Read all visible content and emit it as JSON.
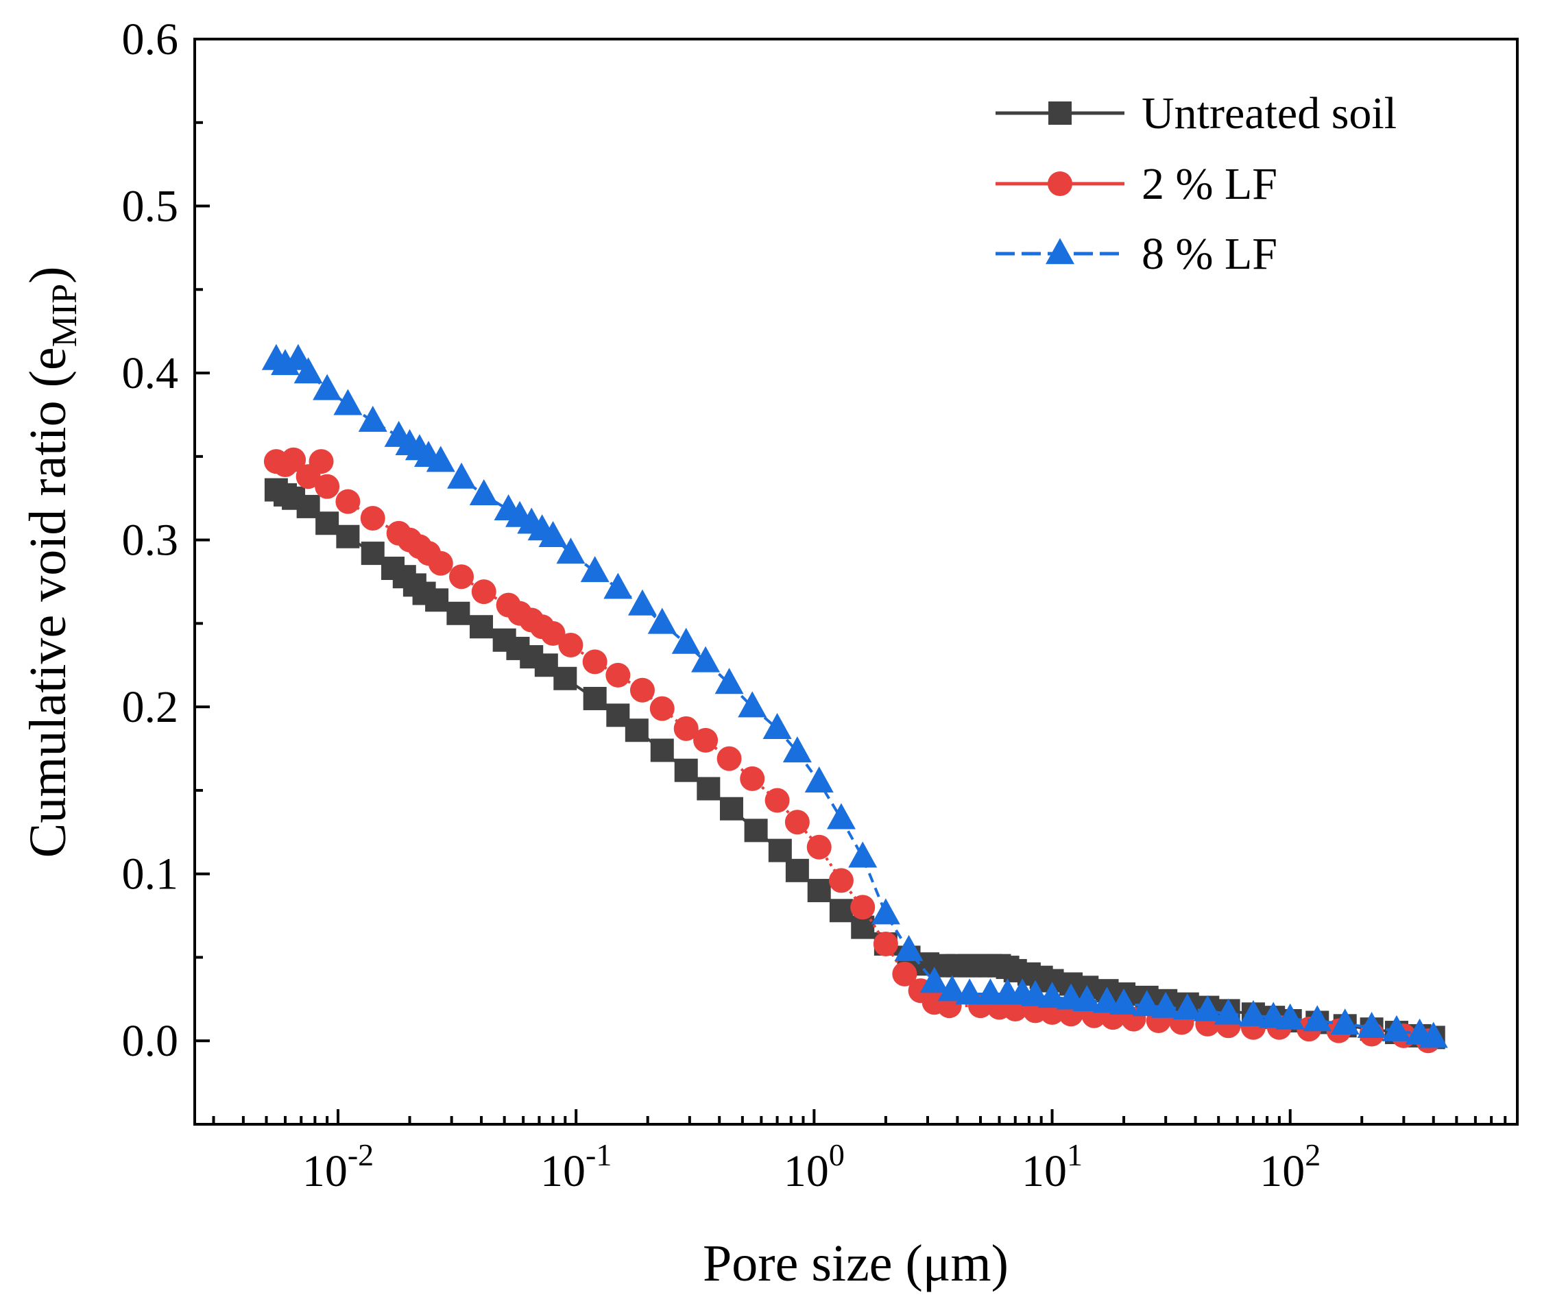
{
  "chart_data": {
    "type": "scatter",
    "title": "",
    "xlabel": "Pore size (μm)",
    "ylabel_main": "Cumulative void ratio (e",
    "ylabel_sub": "MIP",
    "ylabel_close": ")",
    "x_scale": "log",
    "xlim": [
      0.0025,
      900
    ],
    "ylim": [
      -0.05,
      0.6
    ],
    "x_ticks": [
      {
        "value": 0.01,
        "base": "10",
        "exp": "-2"
      },
      {
        "value": 0.1,
        "base": "10",
        "exp": "-1"
      },
      {
        "value": 1,
        "base": "10",
        "exp": "0"
      },
      {
        "value": 10,
        "base": "10",
        "exp": "1"
      },
      {
        "value": 100,
        "base": "10",
        "exp": "2"
      }
    ],
    "y_ticks": [
      {
        "value": 0.0,
        "label": "0.0"
      },
      {
        "value": 0.1,
        "label": "0.1"
      },
      {
        "value": 0.2,
        "label": "0.2"
      },
      {
        "value": 0.3,
        "label": "0.3"
      },
      {
        "value": 0.4,
        "label": "0.4"
      },
      {
        "value": 0.5,
        "label": "0.5"
      },
      {
        "value": 0.6,
        "label": "0.6"
      }
    ],
    "legend_position": "top-right",
    "series": [
      {
        "name": "Untreated soil",
        "marker": "square",
        "color": "#404040",
        "line_style": "solid",
        "x": [
          0.0055,
          0.006,
          0.0065,
          0.0075,
          0.009,
          0.011,
          0.014,
          0.017,
          0.019,
          0.021,
          0.023,
          0.026,
          0.032,
          0.04,
          0.05,
          0.057,
          0.065,
          0.075,
          0.09,
          0.12,
          0.15,
          0.18,
          0.23,
          0.29,
          0.36,
          0.45,
          0.57,
          0.72,
          0.85,
          1.05,
          1.3,
          1.6,
          2.0,
          2.5,
          3.0,
          3.5,
          4.0,
          4.5,
          5.0,
          5.5,
          6.0,
          6.5,
          7.0,
          8.0,
          9.0,
          10,
          12,
          14,
          17,
          20,
          25,
          30,
          37,
          45,
          55,
          70,
          85,
          100,
          130,
          170,
          220,
          280,
          350,
          400
        ],
        "y": [
          0.33,
          0.327,
          0.325,
          0.32,
          0.31,
          0.302,
          0.292,
          0.283,
          0.278,
          0.273,
          0.268,
          0.264,
          0.256,
          0.248,
          0.24,
          0.235,
          0.23,
          0.225,
          0.217,
          0.205,
          0.195,
          0.186,
          0.174,
          0.162,
          0.151,
          0.139,
          0.126,
          0.114,
          0.102,
          0.09,
          0.078,
          0.068,
          0.058,
          0.05,
          0.046,
          0.045,
          0.045,
          0.045,
          0.045,
          0.045,
          0.045,
          0.044,
          0.042,
          0.04,
          0.038,
          0.036,
          0.034,
          0.032,
          0.03,
          0.028,
          0.026,
          0.024,
          0.022,
          0.02,
          0.018,
          0.016,
          0.014,
          0.012,
          0.011,
          0.009,
          0.007,
          0.005,
          0.003,
          0.002
        ]
      },
      {
        "name": "2 % LF",
        "marker": "circle",
        "color": "#e8403c",
        "line_style": "dotted",
        "x": [
          0.0055,
          0.006,
          0.0065,
          0.0075,
          0.0085,
          0.009,
          0.011,
          0.014,
          0.018,
          0.02,
          0.022,
          0.024,
          0.027,
          0.033,
          0.041,
          0.052,
          0.058,
          0.065,
          0.072,
          0.08,
          0.095,
          0.12,
          0.15,
          0.19,
          0.23,
          0.29,
          0.35,
          0.44,
          0.55,
          0.7,
          0.85,
          1.05,
          1.3,
          1.6,
          2.0,
          2.4,
          2.8,
          3.2,
          3.7,
          5.0,
          6.0,
          7.0,
          8.5,
          10,
          12,
          15,
          18,
          22,
          28,
          35,
          45,
          55,
          70,
          90,
          120,
          160,
          220,
          300,
          380
        ],
        "y": [
          0.347,
          0.345,
          0.348,
          0.338,
          0.347,
          0.332,
          0.323,
          0.313,
          0.304,
          0.3,
          0.296,
          0.292,
          0.286,
          0.278,
          0.269,
          0.261,
          0.256,
          0.252,
          0.248,
          0.244,
          0.237,
          0.227,
          0.219,
          0.21,
          0.199,
          0.187,
          0.18,
          0.169,
          0.157,
          0.144,
          0.131,
          0.116,
          0.096,
          0.08,
          0.058,
          0.04,
          0.03,
          0.023,
          0.021,
          0.021,
          0.02,
          0.019,
          0.018,
          0.017,
          0.016,
          0.015,
          0.014,
          0.013,
          0.012,
          0.011,
          0.01,
          0.009,
          0.008,
          0.008,
          0.007,
          0.006,
          0.004,
          0.003,
          0.0
        ]
      },
      {
        "name": "8 % LF",
        "marker": "triangle",
        "color": "#1a6fdf",
        "line_style": "dashed",
        "x": [
          0.0055,
          0.006,
          0.0068,
          0.0075,
          0.009,
          0.011,
          0.014,
          0.018,
          0.02,
          0.022,
          0.024,
          0.027,
          0.033,
          0.041,
          0.052,
          0.058,
          0.065,
          0.072,
          0.08,
          0.095,
          0.12,
          0.15,
          0.19,
          0.23,
          0.29,
          0.35,
          0.44,
          0.55,
          0.7,
          0.85,
          1.05,
          1.3,
          1.6,
          2.0,
          2.5,
          3.2,
          3.8,
          4.5,
          5.5,
          6.5,
          7.5,
          8.5,
          10,
          12,
          14,
          17,
          20,
          25,
          30,
          37,
          45,
          55,
          70,
          85,
          100,
          130,
          170,
          220,
          280,
          350,
          400
        ],
        "y": [
          0.408,
          0.405,
          0.408,
          0.4,
          0.39,
          0.381,
          0.371,
          0.362,
          0.357,
          0.354,
          0.35,
          0.347,
          0.337,
          0.327,
          0.318,
          0.314,
          0.31,
          0.306,
          0.302,
          0.292,
          0.281,
          0.271,
          0.261,
          0.25,
          0.238,
          0.227,
          0.214,
          0.2,
          0.187,
          0.173,
          0.155,
          0.133,
          0.11,
          0.076,
          0.054,
          0.035,
          0.03,
          0.028,
          0.028,
          0.028,
          0.028,
          0.027,
          0.026,
          0.025,
          0.024,
          0.023,
          0.022,
          0.021,
          0.02,
          0.019,
          0.018,
          0.016,
          0.015,
          0.014,
          0.013,
          0.012,
          0.01,
          0.008,
          0.006,
          0.004,
          0.002
        ]
      }
    ]
  }
}
